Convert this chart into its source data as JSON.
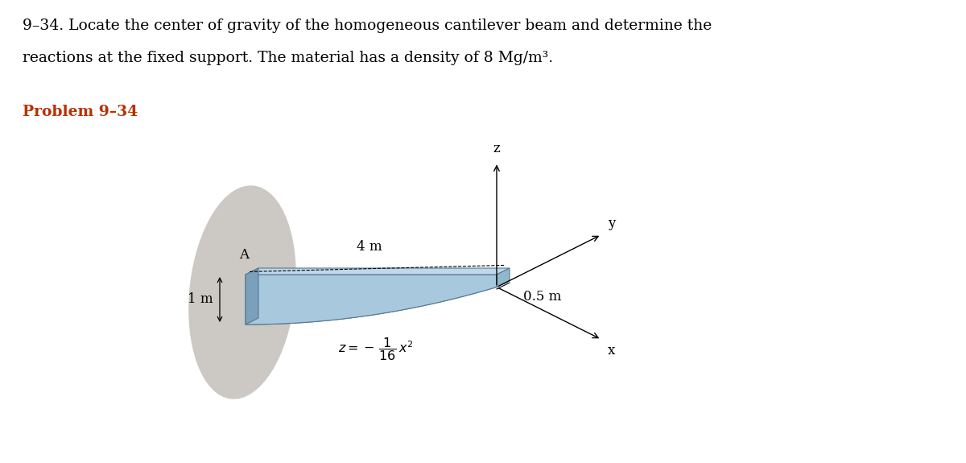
{
  "title_line1": "9–34. Locate the center of gravity of the homogeneous cantilever beam and determine the",
  "title_line2": "reactions at the fixed support. The material has a density of 8 Mg/m³.",
  "problem_label": "Problem 9–34",
  "label_A": "A",
  "label_1m": "1 m",
  "label_4m": "4 m",
  "label_05m": "0.5 m",
  "axis_x": "x",
  "axis_y": "y",
  "axis_z": "z",
  "bg_color": "#ffffff",
  "beam_front_color": "#a8c8de",
  "beam_top_color": "#c0d8ea",
  "beam_left_color": "#7aa0bc",
  "beam_right_color": "#90b8cc",
  "beam_bottom_color": "#88b0c8",
  "beam_edge_color": "#557890",
  "shadow_color": "#ccc8c4",
  "text_color": "#000000",
  "problem_label_color": "#b83000",
  "title_fontsize": 13.5,
  "problem_fontsize": 13.5,
  "anno_fontsize": 12
}
